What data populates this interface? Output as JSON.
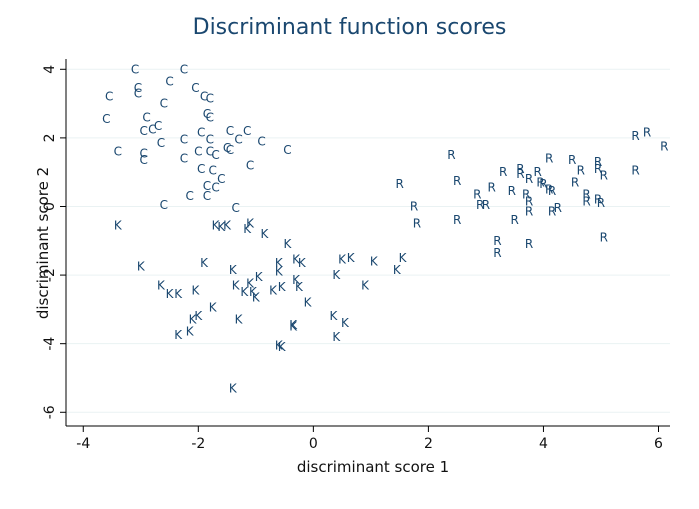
{
  "chart_data": {
    "type": "scatter",
    "title": "Discriminant function scores",
    "xlabel": "discriminant score 1",
    "ylabel": "discriminant score 2",
    "xlim": [
      -4.3,
      6.2
    ],
    "ylim": [
      -6.4,
      4.3
    ],
    "xticks": [
      -4,
      -2,
      0,
      2,
      4,
      6
    ],
    "yticks": [
      -6,
      -4,
      -2,
      0,
      2,
      4
    ],
    "grid": true,
    "marker_color": "#1a476f",
    "series": [
      {
        "name": "C",
        "points": [
          [
            -3.1,
            4.0
          ],
          [
            -2.25,
            4.0
          ],
          [
            -2.5,
            3.65
          ],
          [
            -3.05,
            3.45
          ],
          [
            -2.05,
            3.45
          ],
          [
            -3.05,
            3.3
          ],
          [
            -3.55,
            3.2
          ],
          [
            -1.9,
            3.2
          ],
          [
            -1.8,
            3.15
          ],
          [
            -2.6,
            3.0
          ],
          [
            -1.85,
            2.7
          ],
          [
            -2.9,
            2.6
          ],
          [
            -1.8,
            2.6
          ],
          [
            -3.6,
            2.55
          ],
          [
            -2.7,
            2.35
          ],
          [
            -2.8,
            2.25
          ],
          [
            -2.95,
            2.2
          ],
          [
            -1.95,
            2.15
          ],
          [
            -1.45,
            2.2
          ],
          [
            -1.15,
            2.2
          ],
          [
            -2.65,
            1.85
          ],
          [
            -2.25,
            1.95
          ],
          [
            -1.8,
            1.95
          ],
          [
            -1.3,
            1.95
          ],
          [
            -0.9,
            1.9
          ],
          [
            -3.4,
            1.6
          ],
          [
            -2.95,
            1.55
          ],
          [
            -2.0,
            1.6
          ],
          [
            -1.8,
            1.6
          ],
          [
            -1.5,
            1.7
          ],
          [
            -1.45,
            1.65
          ],
          [
            -0.45,
            1.65
          ],
          [
            -2.95,
            1.35
          ],
          [
            -2.25,
            1.4
          ],
          [
            -1.7,
            1.5
          ],
          [
            -1.95,
            1.1
          ],
          [
            -1.75,
            1.05
          ],
          [
            -1.1,
            1.2
          ],
          [
            -1.6,
            0.8
          ],
          [
            -1.85,
            0.6
          ],
          [
            -1.7,
            0.55
          ],
          [
            -2.15,
            0.3
          ],
          [
            -1.85,
            0.3
          ],
          [
            -2.6,
            0.05
          ],
          [
            -1.35,
            -0.05
          ]
        ]
      },
      {
        "name": "K",
        "points": [
          [
            -3.4,
            -0.55
          ],
          [
            -1.7,
            -0.55
          ],
          [
            -1.5,
            -0.55
          ],
          [
            -1.6,
            -0.6
          ],
          [
            -1.1,
            -0.5
          ],
          [
            -1.15,
            -0.65
          ],
          [
            -0.85,
            -0.8
          ],
          [
            -0.45,
            -1.1
          ],
          [
            -3.0,
            -1.75
          ],
          [
            -1.9,
            -1.65
          ],
          [
            -1.4,
            -1.85
          ],
          [
            -0.6,
            -1.65
          ],
          [
            -0.2,
            -1.65
          ],
          [
            -0.3,
            -1.55
          ],
          [
            0.5,
            -1.55
          ],
          [
            0.65,
            -1.5
          ],
          [
            1.05,
            -1.6
          ],
          [
            1.55,
            -1.5
          ],
          [
            1.45,
            -1.85
          ],
          [
            -0.6,
            -1.9
          ],
          [
            -0.95,
            -2.05
          ],
          [
            0.4,
            -2.0
          ],
          [
            -2.65,
            -2.3
          ],
          [
            -2.5,
            -2.55
          ],
          [
            -2.35,
            -2.55
          ],
          [
            -2.05,
            -2.45
          ],
          [
            -1.35,
            -2.3
          ],
          [
            -1.1,
            -2.25
          ],
          [
            -1.05,
            -2.5
          ],
          [
            -1.2,
            -2.5
          ],
          [
            -1.0,
            -2.65
          ],
          [
            -0.7,
            -2.45
          ],
          [
            -0.55,
            -2.35
          ],
          [
            -0.3,
            -2.15
          ],
          [
            -0.25,
            -2.35
          ],
          [
            0.9,
            -2.3
          ],
          [
            -0.1,
            -2.8
          ],
          [
            -2.0,
            -3.2
          ],
          [
            -2.1,
            -3.3
          ],
          [
            -1.75,
            -2.95
          ],
          [
            -1.3,
            -3.3
          ],
          [
            -0.35,
            -3.5
          ],
          [
            0.35,
            -3.2
          ],
          [
            0.55,
            -3.4
          ],
          [
            -2.35,
            -3.75
          ],
          [
            -2.15,
            -3.65
          ],
          [
            -0.35,
            -3.45
          ],
          [
            -0.6,
            -4.05
          ],
          [
            -0.55,
            -4.1
          ],
          [
            0.4,
            -3.8
          ],
          [
            -1.4,
            -5.3
          ]
        ]
      },
      {
        "name": "R",
        "points": [
          [
            2.4,
            1.5
          ],
          [
            1.5,
            0.65
          ],
          [
            2.5,
            0.75
          ],
          [
            1.75,
            0.0
          ],
          [
            1.8,
            -0.5
          ],
          [
            2.5,
            -0.4
          ],
          [
            2.85,
            0.35
          ],
          [
            2.9,
            0.05
          ],
          [
            3.0,
            0.05
          ],
          [
            3.1,
            0.55
          ],
          [
            3.3,
            1.0
          ],
          [
            3.6,
            1.1
          ],
          [
            3.6,
            0.95
          ],
          [
            3.75,
            0.8
          ],
          [
            3.9,
            1.0
          ],
          [
            4.1,
            1.4
          ],
          [
            4.5,
            1.35
          ],
          [
            4.65,
            1.05
          ],
          [
            4.95,
            1.3
          ],
          [
            4.95,
            1.1
          ],
          [
            5.05,
            0.9
          ],
          [
            3.45,
            0.45
          ],
          [
            3.7,
            0.35
          ],
          [
            3.75,
            0.15
          ],
          [
            3.95,
            0.7
          ],
          [
            4.0,
            0.65
          ],
          [
            4.1,
            0.5
          ],
          [
            4.15,
            0.45
          ],
          [
            4.55,
            0.7
          ],
          [
            4.75,
            0.35
          ],
          [
            4.75,
            0.15
          ],
          [
            4.95,
            0.2
          ],
          [
            5.0,
            0.1
          ],
          [
            3.5,
            -0.4
          ],
          [
            3.75,
            -0.15
          ],
          [
            4.15,
            -0.15
          ],
          [
            4.25,
            -0.05
          ],
          [
            3.2,
            -1.0
          ],
          [
            3.2,
            -1.35
          ],
          [
            3.75,
            -1.1
          ],
          [
            5.05,
            -0.9
          ],
          [
            5.6,
            2.05
          ],
          [
            5.8,
            2.15
          ],
          [
            6.1,
            1.75
          ],
          [
            5.6,
            1.05
          ]
        ]
      }
    ]
  }
}
